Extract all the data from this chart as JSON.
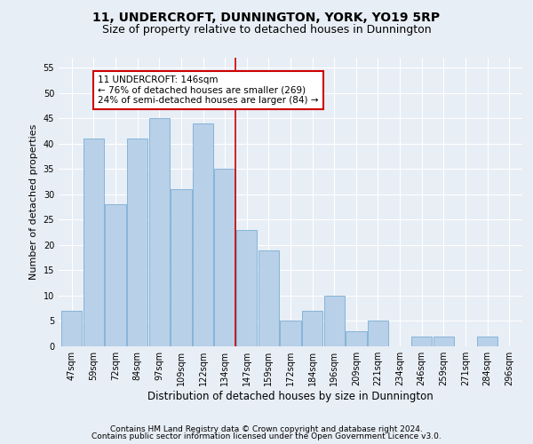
{
  "title": "11, UNDERCROFT, DUNNINGTON, YORK, YO19 5RP",
  "subtitle": "Size of property relative to detached houses in Dunnington",
  "xlabel": "Distribution of detached houses by size in Dunnington",
  "ylabel": "Number of detached properties",
  "categories": [
    "47sqm",
    "59sqm",
    "72sqm",
    "84sqm",
    "97sqm",
    "109sqm",
    "122sqm",
    "134sqm",
    "147sqm",
    "159sqm",
    "172sqm",
    "184sqm",
    "196sqm",
    "209sqm",
    "221sqm",
    "234sqm",
    "246sqm",
    "259sqm",
    "271sqm",
    "284sqm",
    "296sqm"
  ],
  "values": [
    7,
    41,
    28,
    41,
    45,
    31,
    44,
    35,
    23,
    19,
    5,
    7,
    10,
    3,
    5,
    0,
    2,
    2,
    0,
    2,
    0
  ],
  "bar_color": "#b8d0e8",
  "bar_edge_color": "#7aadd4",
  "annotation_line1": "11 UNDERCROFT: 146sqm",
  "annotation_line2": "← 76% of detached houses are smaller (269)",
  "annotation_line3": "24% of semi-detached houses are larger (84) →",
  "annotation_box_facecolor": "#ffffff",
  "annotation_box_edgecolor": "#cc0000",
  "vline_color": "#cc0000",
  "vline_x_index": 7.5,
  "ylim": [
    0,
    57
  ],
  "yticks": [
    0,
    5,
    10,
    15,
    20,
    25,
    30,
    35,
    40,
    45,
    50,
    55
  ],
  "bg_color": "#e8eef5",
  "grid_color": "#ffffff",
  "footer1": "Contains HM Land Registry data © Crown copyright and database right 2024.",
  "footer2": "Contains public sector information licensed under the Open Government Licence v3.0.",
  "title_fontsize": 10,
  "subtitle_fontsize": 9,
  "xlabel_fontsize": 8.5,
  "ylabel_fontsize": 8,
  "tick_fontsize": 7,
  "annot_fontsize": 7.5,
  "footer_fontsize": 6.5
}
